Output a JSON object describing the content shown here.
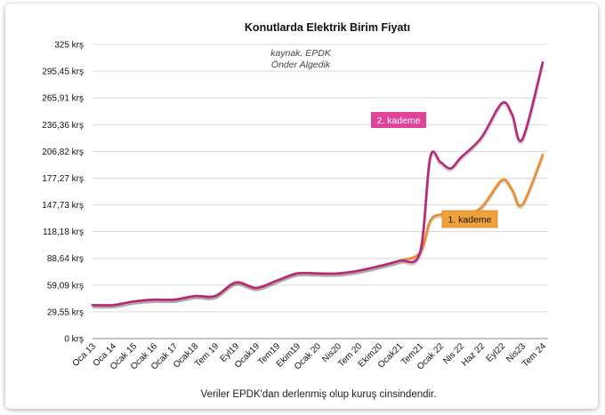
{
  "chart_data": {
    "type": "line",
    "title": "Konutlarda Elektrik Birim Fiyatı",
    "source_lines": [
      "kaynak. EPDK",
      "Önder Algedik"
    ],
    "footnote": "Veriler EPDK'dan derlenmiş olup kuruş cinsindendir.",
    "ylim": [
      0,
      325
    ],
    "y_ticks": [
      0,
      29.55,
      59.09,
      88.64,
      118.18,
      147.73,
      177.27,
      206.82,
      236.36,
      265.91,
      295.45,
      325
    ],
    "y_tick_labels": [
      "0 krş",
      "29,55 krş",
      "59,09 krş",
      "88,64 krş",
      "118,18 krş",
      "147,73 krş",
      "177,27 krş",
      "206,82 krş",
      "236,36 krş",
      "265,91 krş",
      "295,45 krş",
      "325 krş"
    ],
    "x_labels": [
      "Oca 13",
      "Oca 14",
      "Ocak 15",
      "Ocak 16",
      "Ocak 17",
      "Ocak18",
      "Tem 19",
      "Eyl19",
      "Ocak19",
      "Tem19",
      "Ekim19",
      "Ocak 20",
      "Nis20",
      "Tem 20",
      "Ekim20",
      "Ocak21",
      "Tem21",
      "Ocak 22",
      "Nis 22",
      "Haz 22",
      "Eyl22",
      "Nis23",
      "Tem 24"
    ],
    "grid": true,
    "series": [
      {
        "name": "2. kademe",
        "color": "#b8287a",
        "label_bg": "#e0449a",
        "x": [
          0,
          1,
          2,
          3,
          4,
          5,
          6,
          7,
          8,
          9,
          10,
          11,
          12,
          13,
          14,
          15,
          16,
          16.5,
          17,
          17.5,
          18,
          19,
          20,
          20.5,
          21,
          22
        ],
        "y": [
          37,
          37,
          41,
          43,
          43,
          47,
          47,
          62,
          56,
          64,
          72,
          72,
          72,
          75,
          80,
          86,
          95,
          200,
          195,
          188,
          200,
          222,
          260,
          248,
          220,
          305
        ]
      },
      {
        "name": "1. kademe",
        "color": "#ee8a28",
        "label_bg": "#f0a23a",
        "x": [
          0,
          1,
          2,
          3,
          4,
          5,
          6,
          7,
          8,
          9,
          10,
          11,
          12,
          13,
          14,
          15,
          16,
          16.5,
          17,
          17.5,
          18,
          19,
          20,
          20.5,
          21,
          22
        ],
        "y": [
          37,
          37,
          41,
          43,
          43,
          47,
          47,
          62,
          56,
          64,
          72,
          72,
          72,
          75,
          80,
          86,
          95,
          130,
          137,
          136,
          135,
          145,
          175,
          165,
          148,
          203
        ]
      }
    ]
  }
}
